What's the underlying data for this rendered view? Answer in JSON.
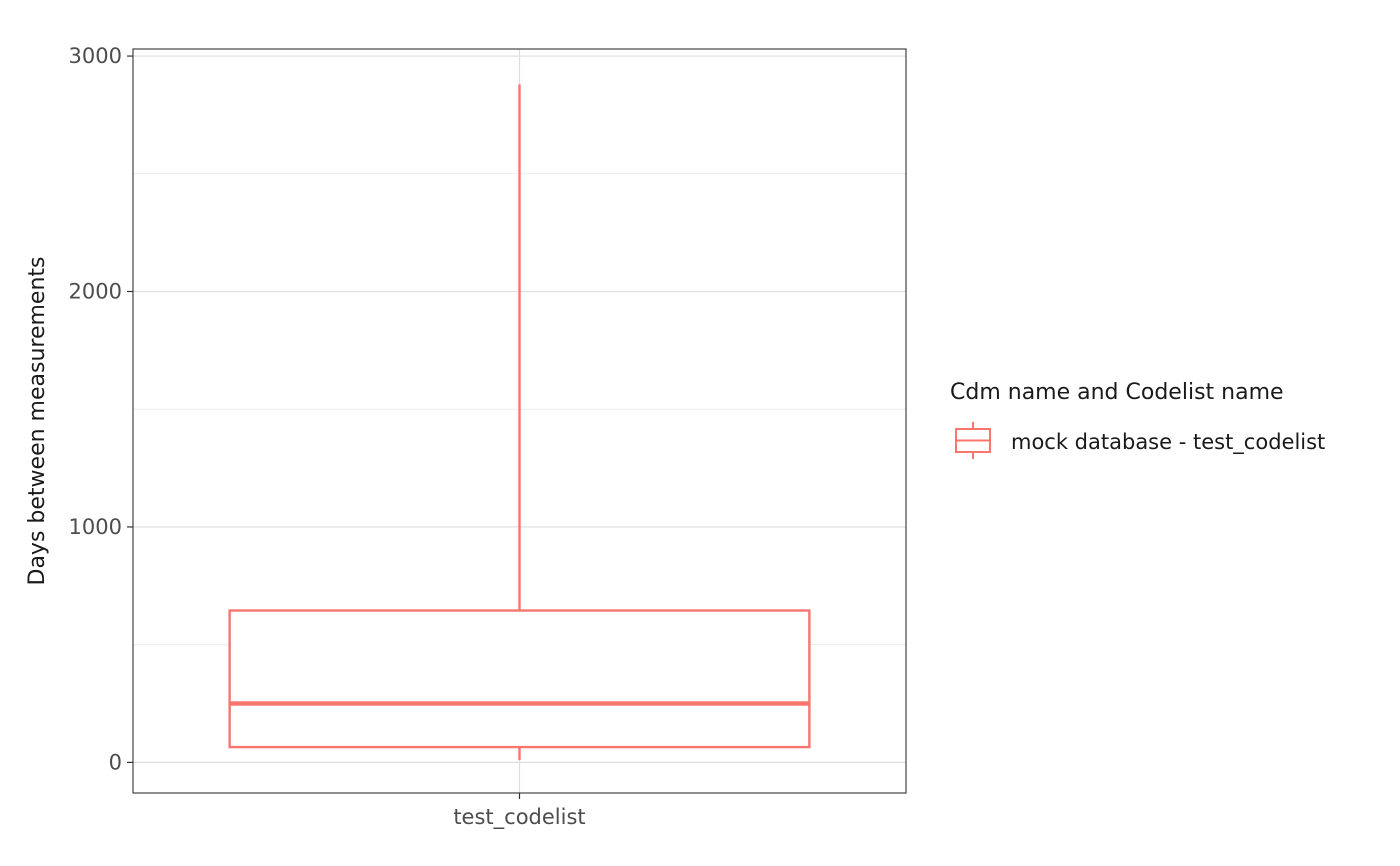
{
  "chart_data": {
    "type": "boxplot",
    "categories": [
      "test_codelist"
    ],
    "series": [
      {
        "name": "mock database - test_codelist",
        "color": "#F8766D",
        "boxes": [
          {
            "category": "test_codelist",
            "min": 10,
            "q1": 65,
            "median": 250,
            "q3": 645,
            "max": 2880
          }
        ]
      }
    ],
    "ylabel": "Days between measurements",
    "xlabel": "",
    "ylim": [
      -130,
      3030
    ],
    "yticks": [
      0,
      1000,
      2000,
      3000
    ],
    "yminor": [
      500,
      1500,
      2500
    ],
    "grid": true,
    "legend": {
      "title": "Cdm name and Codelist name",
      "position": "right",
      "entries": [
        "mock database - test_codelist"
      ]
    }
  }
}
